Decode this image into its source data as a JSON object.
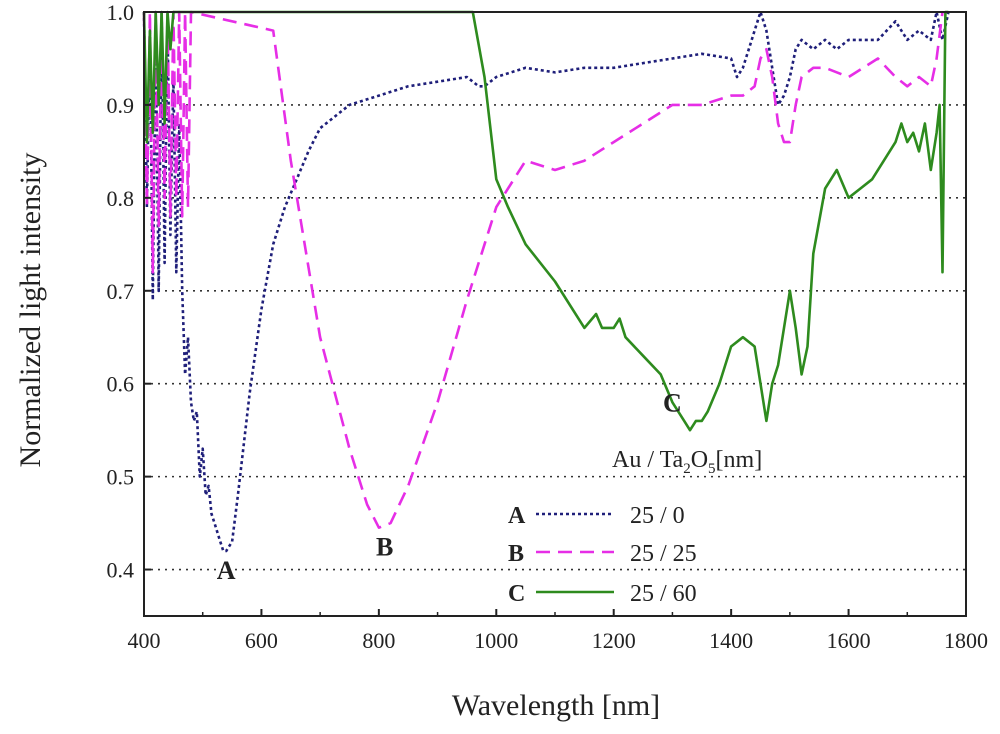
{
  "chart_data": {
    "type": "line",
    "title": "",
    "xlabel": "Wavelength [nm]",
    "ylabel": "Normalized light intensity",
    "xlim": [
      400,
      1800
    ],
    "ylim": [
      0.35,
      1.0
    ],
    "xticks": [
      400,
      600,
      800,
      1000,
      1200,
      1400,
      1600,
      1800
    ],
    "yticks": [
      0.4,
      0.5,
      0.6,
      0.7,
      0.8,
      0.9,
      1.0
    ],
    "xtick_labels": [
      "400",
      "600",
      "800",
      "1000",
      "1200",
      "1400",
      "1600",
      "1800"
    ],
    "ytick_labels": [
      "0.4",
      "0.5",
      "0.6",
      "0.7",
      "0.8",
      "0.9",
      "1.0"
    ],
    "grid": {
      "horizontal_dotted_at": [
        0.4,
        0.5,
        0.6,
        0.7,
        0.8,
        0.9
      ]
    },
    "legend": {
      "title_parts": [
        "Au / Ta",
        "2",
        "O",
        "5",
        "[nm]"
      ],
      "placement": "bottom-center",
      "entries": [
        {
          "key": "A",
          "label": "25 /  0"
        },
        {
          "key": "B",
          "label": "25 / 25"
        },
        {
          "key": "C",
          "label": "25 / 60"
        }
      ]
    },
    "series": [
      {
        "name": "A",
        "color": "#1f1f7a",
        "dash": "dotted",
        "x": [
          400,
          405,
          410,
          415,
          420,
          425,
          430,
          435,
          440,
          445,
          450,
          455,
          460,
          465,
          470,
          475,
          480,
          485,
          490,
          495,
          500,
          505,
          510,
          515,
          520,
          525,
          530,
          535,
          540,
          550,
          560,
          580,
          600,
          620,
          640,
          660,
          680,
          700,
          750,
          800,
          850,
          900,
          950,
          970,
          980,
          1000,
          1050,
          1100,
          1150,
          1200,
          1250,
          1300,
          1350,
          1400,
          1410,
          1420,
          1430,
          1440,
          1450,
          1460,
          1470,
          1480,
          1490,
          1500,
          1510,
          1520,
          1540,
          1560,
          1580,
          1600,
          1650,
          1680,
          1700,
          1720,
          1740,
          1750,
          1760,
          1770
        ],
        "y": [
          1.0,
          0.79,
          0.98,
          0.69,
          0.97,
          0.7,
          1.0,
          0.73,
          0.99,
          0.76,
          0.93,
          0.72,
          0.88,
          0.7,
          0.61,
          0.65,
          0.58,
          0.56,
          0.57,
          0.5,
          0.53,
          0.48,
          0.49,
          0.46,
          0.45,
          0.44,
          0.43,
          0.42,
          0.42,
          0.43,
          0.48,
          0.59,
          0.68,
          0.75,
          0.79,
          0.82,
          0.85,
          0.875,
          0.9,
          0.91,
          0.92,
          0.925,
          0.93,
          0.92,
          0.92,
          0.93,
          0.94,
          0.935,
          0.94,
          0.94,
          0.945,
          0.95,
          0.955,
          0.95,
          0.93,
          0.94,
          0.96,
          0.98,
          1.0,
          0.98,
          0.94,
          0.9,
          0.91,
          0.93,
          0.96,
          0.97,
          0.96,
          0.97,
          0.96,
          0.97,
          0.97,
          0.99,
          0.97,
          0.98,
          0.97,
          1.0,
          0.97,
          1.0
        ]
      },
      {
        "name": "B",
        "color": "#e62ee6",
        "dash": "dashed",
        "x": [
          400,
          405,
          410,
          415,
          420,
          425,
          430,
          435,
          440,
          445,
          450,
          455,
          460,
          465,
          470,
          475,
          480,
          620,
          650,
          700,
          750,
          780,
          800,
          820,
          850,
          900,
          950,
          1000,
          1050,
          1100,
          1150,
          1200,
          1250,
          1300,
          1350,
          1400,
          1420,
          1440,
          1450,
          1460,
          1470,
          1480,
          1490,
          1500,
          1510,
          1520,
          1540,
          1560,
          1600,
          1650,
          1680,
          1700,
          1720,
          1740,
          1750,
          1760
        ],
        "y": [
          1.0,
          0.79,
          1.0,
          0.72,
          1.0,
          0.77,
          1.0,
          0.8,
          1.0,
          0.78,
          1.0,
          0.8,
          1.0,
          0.78,
          1.0,
          0.79,
          1.0,
          0.98,
          0.84,
          0.65,
          0.53,
          0.47,
          0.445,
          0.45,
          0.49,
          0.58,
          0.69,
          0.79,
          0.84,
          0.83,
          0.84,
          0.86,
          0.88,
          0.9,
          0.9,
          0.91,
          0.91,
          0.92,
          0.95,
          0.96,
          0.93,
          0.88,
          0.86,
          0.86,
          0.9,
          0.93,
          0.94,
          0.94,
          0.93,
          0.95,
          0.93,
          0.92,
          0.93,
          0.92,
          0.95,
          1.0
        ]
      },
      {
        "name": "C",
        "color": "#2e8b1e",
        "dash": "solid",
        "x": [
          400,
          405,
          410,
          415,
          420,
          425,
          430,
          435,
          440,
          445,
          450,
          960,
          980,
          1000,
          1020,
          1050,
          1100,
          1150,
          1170,
          1180,
          1200,
          1210,
          1220,
          1250,
          1280,
          1300,
          1320,
          1330,
          1340,
          1350,
          1360,
          1380,
          1400,
          1420,
          1440,
          1450,
          1460,
          1470,
          1480,
          1490,
          1500,
          1510,
          1520,
          1530,
          1540,
          1560,
          1580,
          1600,
          1620,
          1640,
          1660,
          1680,
          1690,
          1700,
          1710,
          1720,
          1730,
          1740,
          1750,
          1755,
          1760,
          1765,
          1770
        ],
        "y": [
          1.0,
          0.86,
          0.98,
          0.87,
          1.0,
          0.9,
          1.0,
          0.88,
          1.0,
          0.96,
          1.0,
          1.0,
          0.93,
          0.82,
          0.79,
          0.75,
          0.71,
          0.66,
          0.675,
          0.66,
          0.66,
          0.67,
          0.65,
          0.63,
          0.61,
          0.58,
          0.56,
          0.55,
          0.56,
          0.56,
          0.57,
          0.6,
          0.64,
          0.65,
          0.64,
          0.6,
          0.56,
          0.6,
          0.62,
          0.66,
          0.7,
          0.66,
          0.61,
          0.64,
          0.74,
          0.81,
          0.83,
          0.8,
          0.81,
          0.82,
          0.84,
          0.86,
          0.88,
          0.86,
          0.87,
          0.85,
          0.88,
          0.83,
          0.87,
          0.9,
          0.72,
          1.0,
          1.0
        ]
      }
    ],
    "annotations": [
      {
        "text": "A",
        "x": 540,
        "y": 0.39
      },
      {
        "text": "B",
        "x": 810,
        "y": 0.415
      },
      {
        "text": "C",
        "x": 1300,
        "y": 0.57
      }
    ]
  }
}
